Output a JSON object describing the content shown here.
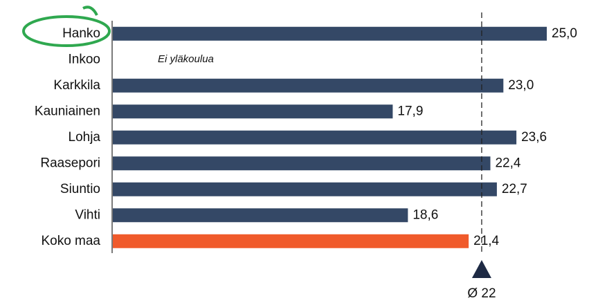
{
  "chart_data": {
    "type": "barh",
    "categories": [
      "Hanko",
      "Inkoo",
      "Karkkila",
      "Kauniainen",
      "Lohja",
      "Raasepori",
      "Siuntio",
      "Vihti",
      "Koko maa"
    ],
    "values": [
      25.0,
      null,
      23.0,
      17.9,
      23.6,
      22.4,
      22.7,
      18.6,
      21.4
    ],
    "value_labels": [
      "25,0",
      null,
      "23,0",
      "17,9",
      "23,6",
      "22,4",
      "22,7",
      "18,6",
      "21,4"
    ],
    "colors": [
      "#344866",
      "#344866",
      "#344866",
      "#344866",
      "#344866",
      "#344866",
      "#344866",
      "#344866",
      "#f05a2b"
    ],
    "xlim": [
      5,
      25
    ],
    "annotation": "Ei yläkoulua",
    "reference_line": {
      "value": 22,
      "label": "Ø 22"
    }
  }
}
